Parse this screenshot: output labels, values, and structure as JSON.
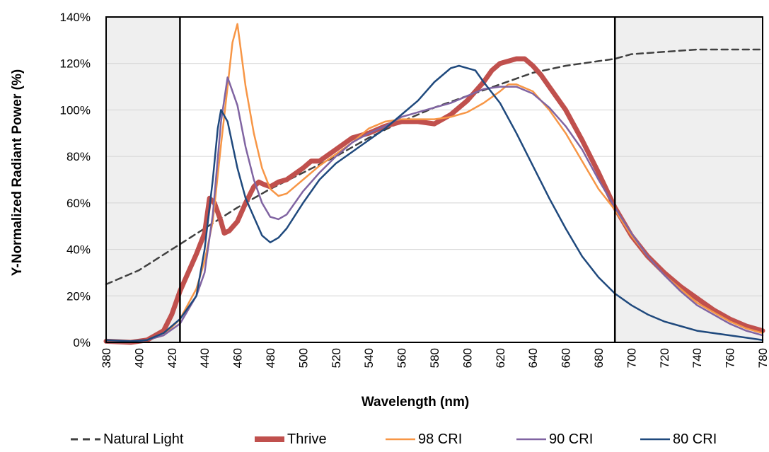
{
  "chart_data": {
    "type": "line",
    "xlabel": "Wavelength (nm)",
    "ylabel": "Y-Normalized Radiant Power (%)",
    "xlim": [
      380,
      780
    ],
    "ylim": [
      0,
      140
    ],
    "x_ticks": [
      "380",
      "400",
      "420",
      "440",
      "460",
      "480",
      "500",
      "520",
      "540",
      "560",
      "580",
      "600",
      "620",
      "640",
      "660",
      "680",
      "700",
      "720",
      "740",
      "760",
      "780"
    ],
    "y_ticks": [
      "0%",
      "20%",
      "40%",
      "60%",
      "80%",
      "100%",
      "120%",
      "140%"
    ],
    "shaded_regions": [
      [
        380,
        425
      ],
      [
        690,
        780
      ]
    ],
    "boundary_lines_x": [
      425,
      690
    ],
    "grid": true,
    "legend_position": "bottom",
    "series": [
      {
        "name": "Natural Light",
        "color": "#404040",
        "style": "dashed",
        "points": [
          [
            380,
            25
          ],
          [
            400,
            31
          ],
          [
            420,
            40
          ],
          [
            440,
            49
          ],
          [
            460,
            58
          ],
          [
            480,
            66
          ],
          [
            500,
            73
          ],
          [
            520,
            80
          ],
          [
            540,
            88
          ],
          [
            560,
            95
          ],
          [
            580,
            101
          ],
          [
            600,
            106
          ],
          [
            620,
            111
          ],
          [
            640,
            116
          ],
          [
            660,
            119
          ],
          [
            680,
            121
          ],
          [
            690,
            122
          ],
          [
            700,
            124
          ],
          [
            720,
            125
          ],
          [
            740,
            126
          ],
          [
            760,
            126
          ],
          [
            780,
            126
          ]
        ]
      },
      {
        "name": "Thrive",
        "color": "#C0504D",
        "style": "thick",
        "points": [
          [
            380,
            0.5
          ],
          [
            395,
            0
          ],
          [
            405,
            1
          ],
          [
            415,
            5
          ],
          [
            420,
            12
          ],
          [
            425,
            22
          ],
          [
            430,
            30
          ],
          [
            435,
            38
          ],
          [
            440,
            47
          ],
          [
            443,
            62
          ],
          [
            446,
            60
          ],
          [
            450,
            52
          ],
          [
            452,
            47
          ],
          [
            455,
            48
          ],
          [
            460,
            52
          ],
          [
            465,
            60
          ],
          [
            470,
            67
          ],
          [
            473,
            69
          ],
          [
            476,
            68
          ],
          [
            480,
            67
          ],
          [
            485,
            69
          ],
          [
            490,
            70
          ],
          [
            500,
            75
          ],
          [
            505,
            78
          ],
          [
            510,
            78
          ],
          [
            520,
            83
          ],
          [
            530,
            88
          ],
          [
            540,
            90
          ],
          [
            550,
            93
          ],
          [
            560,
            95
          ],
          [
            570,
            95
          ],
          [
            580,
            94
          ],
          [
            585,
            96
          ],
          [
            590,
            98
          ],
          [
            600,
            104
          ],
          [
            610,
            112
          ],
          [
            615,
            117
          ],
          [
            620,
            120
          ],
          [
            630,
            122
          ],
          [
            635,
            122
          ],
          [
            640,
            119
          ],
          [
            645,
            115
          ],
          [
            650,
            110
          ],
          [
            660,
            100
          ],
          [
            670,
            87
          ],
          [
            680,
            73
          ],
          [
            690,
            58
          ],
          [
            700,
            46
          ],
          [
            710,
            37
          ],
          [
            720,
            30
          ],
          [
            730,
            24
          ],
          [
            740,
            19
          ],
          [
            750,
            14
          ],
          [
            760,
            10
          ],
          [
            770,
            7
          ],
          [
            780,
            5
          ]
        ]
      },
      {
        "name": "98 CRI",
        "color": "#F79646",
        "style": "solid",
        "points": [
          [
            380,
            0
          ],
          [
            395,
            0
          ],
          [
            405,
            1
          ],
          [
            415,
            3
          ],
          [
            425,
            10
          ],
          [
            435,
            23
          ],
          [
            440,
            35
          ],
          [
            445,
            52
          ],
          [
            450,
            85
          ],
          [
            454,
            110
          ],
          [
            457,
            129
          ],
          [
            460,
            137
          ],
          [
            465,
            110
          ],
          [
            470,
            90
          ],
          [
            475,
            75
          ],
          [
            480,
            66
          ],
          [
            485,
            63
          ],
          [
            490,
            64
          ],
          [
            500,
            70
          ],
          [
            510,
            76
          ],
          [
            520,
            81
          ],
          [
            530,
            86
          ],
          [
            540,
            92
          ],
          [
            550,
            95
          ],
          [
            560,
            96
          ],
          [
            570,
            96
          ],
          [
            580,
            96
          ],
          [
            590,
            97
          ],
          [
            600,
            99
          ],
          [
            610,
            103
          ],
          [
            620,
            108
          ],
          [
            625,
            111
          ],
          [
            630,
            111
          ],
          [
            640,
            108
          ],
          [
            650,
            100
          ],
          [
            660,
            90
          ],
          [
            670,
            78
          ],
          [
            680,
            66
          ],
          [
            690,
            57
          ],
          [
            700,
            46
          ],
          [
            710,
            37
          ],
          [
            720,
            29
          ],
          [
            730,
            23
          ],
          [
            740,
            17
          ],
          [
            750,
            13
          ],
          [
            760,
            9
          ],
          [
            770,
            6
          ],
          [
            780,
            4
          ]
        ]
      },
      {
        "name": "90 CRI",
        "color": "#8064A2",
        "style": "solid",
        "points": [
          [
            380,
            0
          ],
          [
            395,
            0
          ],
          [
            405,
            1
          ],
          [
            415,
            3
          ],
          [
            425,
            8
          ],
          [
            435,
            20
          ],
          [
            440,
            30
          ],
          [
            445,
            55
          ],
          [
            450,
            95
          ],
          [
            454,
            114
          ],
          [
            460,
            102
          ],
          [
            465,
            84
          ],
          [
            470,
            70
          ],
          [
            475,
            60
          ],
          [
            480,
            54
          ],
          [
            485,
            53
          ],
          [
            490,
            55
          ],
          [
            500,
            65
          ],
          [
            510,
            73
          ],
          [
            520,
            80
          ],
          [
            530,
            86
          ],
          [
            540,
            90
          ],
          [
            550,
            93
          ],
          [
            560,
            97
          ],
          [
            570,
            99
          ],
          [
            580,
            101
          ],
          [
            590,
            103
          ],
          [
            600,
            106
          ],
          [
            610,
            109
          ],
          [
            620,
            110
          ],
          [
            630,
            110
          ],
          [
            640,
            107
          ],
          [
            650,
            101
          ],
          [
            660,
            93
          ],
          [
            670,
            83
          ],
          [
            680,
            70
          ],
          [
            690,
            58
          ],
          [
            700,
            47
          ],
          [
            710,
            37
          ],
          [
            720,
            29
          ],
          [
            730,
            22
          ],
          [
            740,
            16
          ],
          [
            750,
            12
          ],
          [
            760,
            8
          ],
          [
            770,
            5
          ],
          [
            780,
            3
          ]
        ]
      },
      {
        "name": "80 CRI",
        "color": "#1F497D",
        "style": "solid",
        "points": [
          [
            380,
            1
          ],
          [
            395,
            0.5
          ],
          [
            405,
            1
          ],
          [
            415,
            4
          ],
          [
            425,
            10
          ],
          [
            435,
            20
          ],
          [
            440,
            40
          ],
          [
            445,
            70
          ],
          [
            448,
            92
          ],
          [
            450,
            100
          ],
          [
            454,
            95
          ],
          [
            460,
            75
          ],
          [
            465,
            62
          ],
          [
            470,
            54
          ],
          [
            475,
            46
          ],
          [
            480,
            43
          ],
          [
            485,
            45
          ],
          [
            490,
            49
          ],
          [
            500,
            60
          ],
          [
            510,
            70
          ],
          [
            520,
            77
          ],
          [
            530,
            82
          ],
          [
            540,
            87
          ],
          [
            550,
            92
          ],
          [
            560,
            98
          ],
          [
            570,
            104
          ],
          [
            580,
            112
          ],
          [
            590,
            118
          ],
          [
            595,
            119
          ],
          [
            600,
            118
          ],
          [
            605,
            117
          ],
          [
            610,
            112
          ],
          [
            620,
            103
          ],
          [
            630,
            90
          ],
          [
            640,
            76
          ],
          [
            650,
            62
          ],
          [
            660,
            49
          ],
          [
            670,
            37
          ],
          [
            680,
            28
          ],
          [
            690,
            21
          ],
          [
            700,
            16
          ],
          [
            710,
            12
          ],
          [
            720,
            9
          ],
          [
            730,
            7
          ],
          [
            740,
            5
          ],
          [
            750,
            4
          ],
          [
            760,
            3
          ],
          [
            770,
            2
          ],
          [
            780,
            1
          ]
        ]
      }
    ]
  }
}
